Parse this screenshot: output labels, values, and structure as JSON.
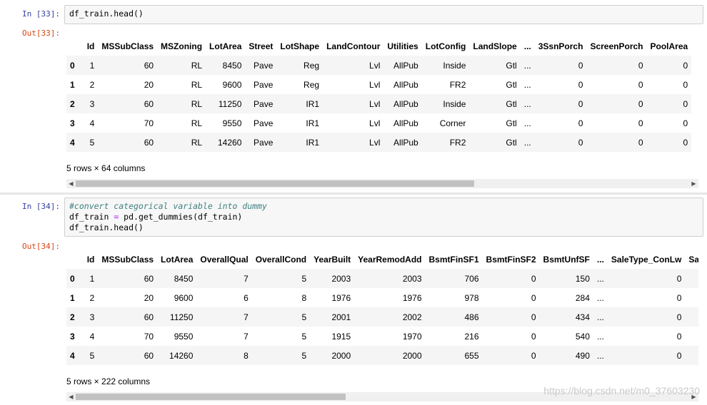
{
  "cell33": {
    "in_prompt": "In  [33]:",
    "code": [
      "df_train.head()"
    ],
    "out_prompt": "Out[33]:",
    "columns": [
      "",
      "Id",
      "MSSubClass",
      "MSZoning",
      "LotArea",
      "Street",
      "LotShape",
      "LandContour",
      "Utilities",
      "LotConfig",
      "LandSlope",
      "...",
      "3SsnPorch",
      "ScreenPorch",
      "PoolArea"
    ],
    "rows": [
      [
        "0",
        "1",
        "60",
        "RL",
        "8450",
        "Pave",
        "Reg",
        "Lvl",
        "AllPub",
        "Inside",
        "Gtl",
        "...",
        "0",
        "0",
        "0"
      ],
      [
        "1",
        "2",
        "20",
        "RL",
        "9600",
        "Pave",
        "Reg",
        "Lvl",
        "AllPub",
        "FR2",
        "Gtl",
        "...",
        "0",
        "0",
        "0"
      ],
      [
        "2",
        "3",
        "60",
        "RL",
        "11250",
        "Pave",
        "IR1",
        "Lvl",
        "AllPub",
        "Inside",
        "Gtl",
        "...",
        "0",
        "0",
        "0"
      ],
      [
        "3",
        "4",
        "70",
        "RL",
        "9550",
        "Pave",
        "IR1",
        "Lvl",
        "AllPub",
        "Corner",
        "Gtl",
        "...",
        "0",
        "0",
        "0"
      ],
      [
        "4",
        "5",
        "60",
        "RL",
        "14260",
        "Pave",
        "IR1",
        "Lvl",
        "AllPub",
        "FR2",
        "Gtl",
        "...",
        "0",
        "0",
        "0"
      ]
    ],
    "shape": "5 rows × 64 columns",
    "scroll_thumb_fraction": 0.65
  },
  "cell34": {
    "in_prompt": "In  [34]:",
    "code_comment": "#convert categorical variable into dummy",
    "code_line2_a": "df_train ",
    "code_line2_op": "=",
    "code_line2_b": " pd.get_dummies(df_train)",
    "code_line3": "df_train.head()",
    "out_prompt": "Out[34]:",
    "columns": [
      "",
      "Id",
      "MSSubClass",
      "LotArea",
      "OverallQual",
      "OverallCond",
      "YearBuilt",
      "YearRemodAdd",
      "BsmtFinSF1",
      "BsmtFinSF2",
      "BsmtUnfSF",
      "...",
      "SaleType_ConLw",
      "Sa"
    ],
    "rows": [
      [
        "0",
        "1",
        "60",
        "8450",
        "7",
        "5",
        "2003",
        "2003",
        "706",
        "0",
        "150",
        "...",
        "0",
        ""
      ],
      [
        "1",
        "2",
        "20",
        "9600",
        "6",
        "8",
        "1976",
        "1976",
        "978",
        "0",
        "284",
        "...",
        "0",
        ""
      ],
      [
        "2",
        "3",
        "60",
        "11250",
        "7",
        "5",
        "2001",
        "2002",
        "486",
        "0",
        "434",
        "...",
        "0",
        ""
      ],
      [
        "3",
        "4",
        "70",
        "9550",
        "7",
        "5",
        "1915",
        "1970",
        "216",
        "0",
        "540",
        "...",
        "0",
        ""
      ],
      [
        "4",
        "5",
        "60",
        "14260",
        "8",
        "5",
        "2000",
        "2000",
        "655",
        "0",
        "490",
        "...",
        "0",
        ""
      ]
    ],
    "shape": "5 rows × 222 columns",
    "scroll_thumb_fraction": 0.44
  },
  "watermark": "https://blog.csdn.net/m0_37603230"
}
